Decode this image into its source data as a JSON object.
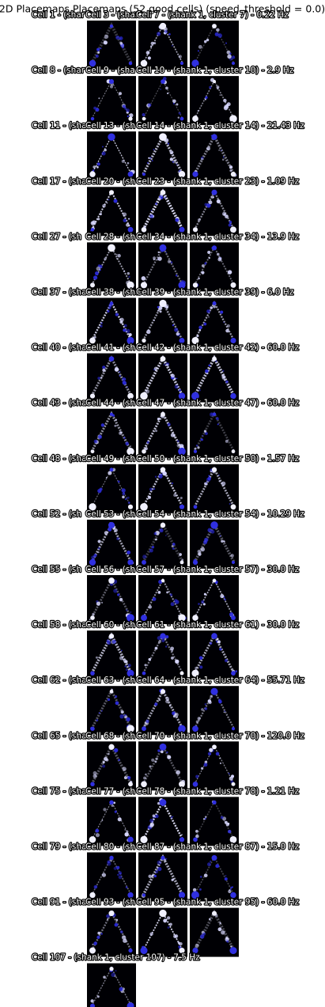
{
  "title": "2D Placemaps Placemaps (52 good cells) (speed_threshold = 0.0)",
  "rows": [
    {
      "cells": [
        "Cell 1 - (shar",
        "Cell 3 - (shar",
        "Cell 7 - (shank 1, cluster 7) - 0.22 Hz"
      ]
    },
    {
      "cells": [
        "Cell 8 - (shar",
        "Cell 9 - (sha",
        "Cell 10 - (shank 1, cluster 10) - 2.9 Hz"
      ]
    },
    {
      "cells": [
        "Cell 11 - (sha",
        "Cell 13 - (sh",
        "Cell 14 - (shank 1, cluster 14) - 21.43 Hz"
      ]
    },
    {
      "cells": [
        "Cell 17 - (sha",
        "Cell 20 - (sh",
        "Cell 23 - (shank 1, cluster 23) - 1.09 Hz"
      ]
    },
    {
      "cells": [
        "Cell 27 - (sh",
        "Cell 28 - (sh",
        "Cell 34 - (shank 1, cluster 34) - 13.9 Hz"
      ]
    },
    {
      "cells": [
        "Cell 37 - (sha",
        "Cell 38 - (sha",
        "Cell 39 - (shank 1, cluster 39) - 6.0 Hz"
      ]
    },
    {
      "cells": [
        "Cell 40 - (sha",
        "Cell 41 - (sh",
        "Cell 42 - (shank 1, cluster 42) - 60.0 Hz"
      ]
    },
    {
      "cells": [
        "Cell 43 - (sha",
        "Cell 44 - (sh",
        "Cell 47 - (shank 1, cluster 47) - 60.0 Hz"
      ]
    },
    {
      "cells": [
        "Cell 48 - (sha",
        "Cell 49 - (sh",
        "Cell 50 - (shank 1, cluster 50) - 1.57 Hz"
      ]
    },
    {
      "cells": [
        "Cell 52 - (sh",
        "Cell 53 - (sh",
        "Cell 54 - (shank 1, cluster 54) - 10.29 Hz"
      ]
    },
    {
      "cells": [
        "Cell 55 - (sh",
        "Cell 56 - (sh",
        "Cell 57 - (shank 1, cluster 57) - 30.0 Hz"
      ]
    },
    {
      "cells": [
        "Cell 58 - (sha",
        "Cell 60 - (sh",
        "Cell 61 - (shank 1, cluster 61) - 30.0 Hz"
      ]
    },
    {
      "cells": [
        "Cell 62 - (sha",
        "Cell 63 - (sh",
        "Cell 64 - (shank 1, cluster 64) - 55.71 Hz"
      ]
    },
    {
      "cells": [
        "Cell 65 - (sha",
        "Cell 68 - (sh",
        "Cell 70 - (shank 1, cluster 70) - 120.0 Hz"
      ]
    },
    {
      "cells": [
        "Cell 75 - (sha",
        "Cell 77 - (sh",
        "Cell 78 - (shank 1, cluster 78) - 1.21 Hz"
      ]
    },
    {
      "cells": [
        "Cell 79 - (sha",
        "Cell 80 - (sh",
        "Cell 87 - (shank 1, cluster 87) - 15.0 Hz"
      ]
    },
    {
      "cells": [
        "Cell 91 - (sha",
        "Cell 93 - (sh",
        "Cell 95 - (shank 1, cluster 95) - 60.0 Hz"
      ]
    },
    {
      "cells": [
        "Cell 107 - (shank 1, cluster 107) - 7.5 Hz"
      ]
    }
  ]
}
